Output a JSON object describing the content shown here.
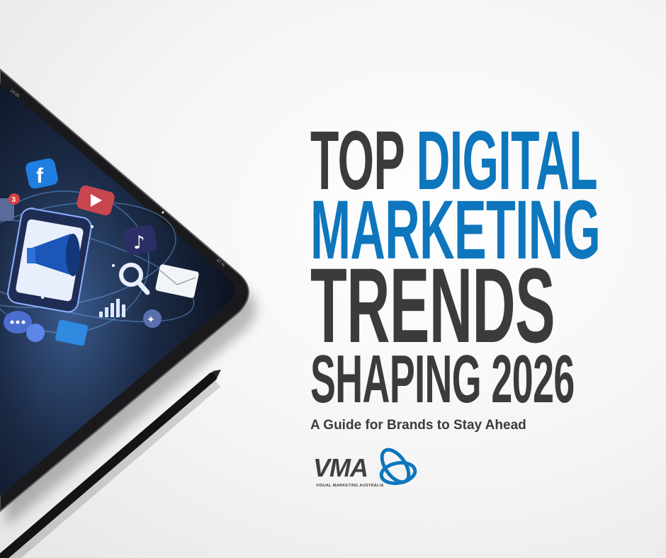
{
  "headline": {
    "line1_dark": "TOP",
    "line1_blue": "DIGITAL",
    "line2": "MARKETING",
    "line3": "TRENDS",
    "line4": "SHAPING 2026"
  },
  "subtitle": "A Guide for Brands to Stay Ahead",
  "logo": {
    "name": "VMA",
    "tagline": "VISUAL MARKETING AUSTRALIA"
  },
  "tablet": {
    "status_time": "14:00",
    "status_battery": "47 %",
    "notification_badge": "3",
    "icons": [
      "facebook-icon",
      "youtube-icon",
      "tiktok-icon",
      "megaphone-icon",
      "search-icon",
      "mail-icon",
      "chart-icon",
      "heart-icon",
      "chat-icon",
      "bird-icon"
    ]
  },
  "colors": {
    "brand_blue": "#0e76bd",
    "text_dark": "#3b3b3d"
  }
}
